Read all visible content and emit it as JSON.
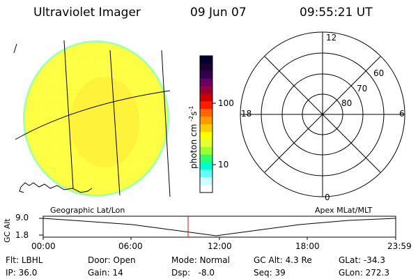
{
  "header": {
    "instrument": "Ultraviolet Imager",
    "date": "09 Jun 07",
    "time": "09:55:21 UT"
  },
  "colorbar": {
    "unit_label": "photon cm",
    "unit_sup1": "-2",
    "unit_mid": "s",
    "unit_sup2": "-1",
    "tick_100": "100",
    "tick_10": "10",
    "colors": [
      "#000033",
      "#1a0033",
      "#33004d",
      "#660066",
      "#990033",
      "#cc0000",
      "#ff1a00",
      "#ff6600",
      "#ff9900",
      "#ffcc00",
      "#ffff00",
      "#e6ff33",
      "#99ff33",
      "#33ff66",
      "#00ffcc",
      "#66ffff",
      "#ccffff",
      "#ffffff"
    ]
  },
  "polar": {
    "mlt_12": "12",
    "mlt_18": "18",
    "mlt_6": "6",
    "mlt_0": "0",
    "lat_60": "60",
    "lat_70": "70",
    "lat_80": "80"
  },
  "image": {
    "fill_color": "#ffff40",
    "rim_color": "#aaffaa"
  },
  "timeline": {
    "left_caption": "Geographic Lat/Lon",
    "right_caption": "Apex MLat/MLT",
    "axis_label": "GC Alt",
    "y_top": "9.0",
    "y_bottom": "1.8",
    "ticks": [
      "00:00",
      "06:00",
      "12:00",
      "18:00",
      "23:59"
    ],
    "marker_color": "#ff0000"
  },
  "info": {
    "flt_label": "Flt:",
    "flt_value": "LBHL",
    "ip_label": "IP:",
    "ip_value": "36.0",
    "door_label": "Door:",
    "door_value": "Open",
    "gain_label": "Gain:",
    "gain_value": "14",
    "mode_label": "Mode:",
    "mode_value": "Normal",
    "dsp_label": "Dsp:",
    "dsp_value": "-8.0",
    "gcalt_label": "GC Alt:",
    "gcalt_value": "4.3 Re",
    "seq_label": "Seq:",
    "seq_value": "39",
    "glat_label": "GLat:",
    "glat_value": "-34.3",
    "glon_label": "GLon:",
    "glon_value": "272.3"
  }
}
